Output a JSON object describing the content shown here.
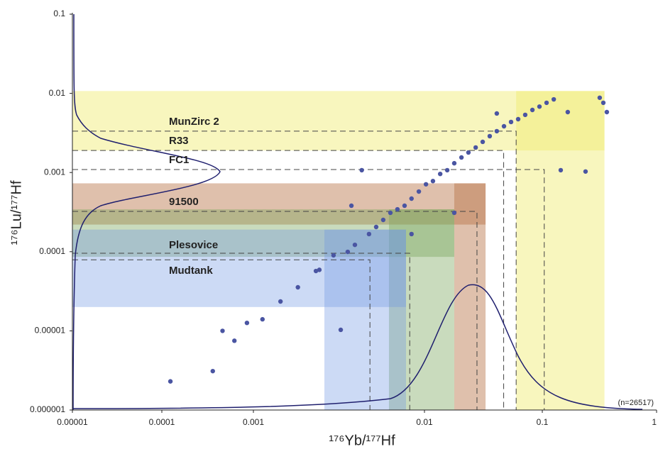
{
  "chart_data": {
    "type": "scatter",
    "x_label": "¹⁷⁶Yb/¹⁷⁷Hf",
    "y_label": "¹⁷⁶Lu/¹⁷⁷Hf",
    "annotation": "(n=26517)",
    "log_x": true,
    "log_y": true,
    "xlim": [
      1e-05,
      1
    ],
    "ylim": [
      1e-06,
      0.1
    ],
    "xticks": [
      1e-05,
      0.0001,
      0.001,
      0.01,
      0.1,
      1
    ],
    "yticks": [
      1e-06,
      1e-05,
      0.0001,
      0.001,
      0.01,
      0.1
    ],
    "color": "#4a55a2",
    "x": [
      0.000124,
      0.00036,
      0.00046,
      0.00062,
      0.00085,
      0.00113,
      0.00144,
      0.00182,
      0.00232,
      0.00324,
      0.00294,
      0.00392,
      0.0043,
      0.00474,
      0.00574,
      0.00695,
      0.0084,
      0.0103,
      0.0136,
      0.0179,
      0.0236,
      0.0312,
      0.0411,
      0.0543,
      0.0716,
      0.0946,
      0.126,
      0.167,
      0.239,
      0.342,
      0.367,
      0.318,
      0.00374,
      0.0179,
      0.145,
      0.0084,
      0.0411,
      0.00243,
      0.00356,
      0.00522,
      0.00632,
      0.00765,
      0.00927,
      0.0118,
      0.0156,
      0.0206,
      0.0272,
      0.0358,
      0.0473,
      0.0624,
      0.0824,
      0.109
    ],
    "y": [
      2.3e-06,
      3.1e-06,
      1e-05,
      7.5e-06,
      1.26e-05,
      1.4e-05,
      2.35e-05,
      3.55e-05,
      5.7e-05,
      1.03e-05,
      9e-05,
      0.000122,
      0.00107,
      0.000167,
      0.000252,
      0.000343,
      0.000468,
      0.00071,
      0.00096,
      0.00131,
      0.00179,
      0.00244,
      0.00333,
      0.00435,
      0.00535,
      0.0068,
      0.0084,
      0.0058,
      0.00103,
      0.0076,
      0.0058,
      0.0088,
      0.000381,
      0.00031,
      0.00107,
      0.000167,
      0.00557,
      5.9e-05,
      9.95e-05,
      0.000205,
      0.00031,
      0.000381,
      0.000575,
      0.00078,
      0.00107,
      0.00155,
      0.00207,
      0.00288,
      0.00384,
      0.00472,
      0.00617,
      0.0076
    ],
    "reference_materials": [
      {
        "name": "MunZirc 2",
        "lu": 0.00333,
        "yb": 0.06,
        "color": "rgba(240,236,110,0.45)",
        "lu_range": [
          0.0019,
          0.0107
        ],
        "yb_range": [
          0.06,
          0.35
        ]
      },
      {
        "name": "R33",
        "lu": 0.0019,
        "yb": 0.047
      },
      {
        "name": "FC1",
        "lu": 0.00109,
        "yb": 0.104
      },
      {
        "name": "91500",
        "lu": 0.000323,
        "yb": 0.0279,
        "color": "rgba(185,115,70,0.45)",
        "lu_range": [
          0.00022,
          0.00073
        ],
        "yb_range": [
          0.0179,
          0.033
        ]
      },
      {
        "name": "Plesovice",
        "lu": 9.55e-05,
        "yb": 0.0082,
        "color": "rgba(120,165,90,0.4)",
        "lu_range": [
          8.6e-05,
          0.000343
        ],
        "yb_range": [
          0.0062,
          0.0179
        ]
      },
      {
        "name": "Mudtank",
        "lu": 7.9e-05,
        "yb": 0.0048,
        "color": "rgba(110,150,225,0.35)",
        "lu_range": [
          2e-05,
          0.00019
        ],
        "yb_range": [
          0.0026,
          0.0078
        ]
      }
    ]
  }
}
